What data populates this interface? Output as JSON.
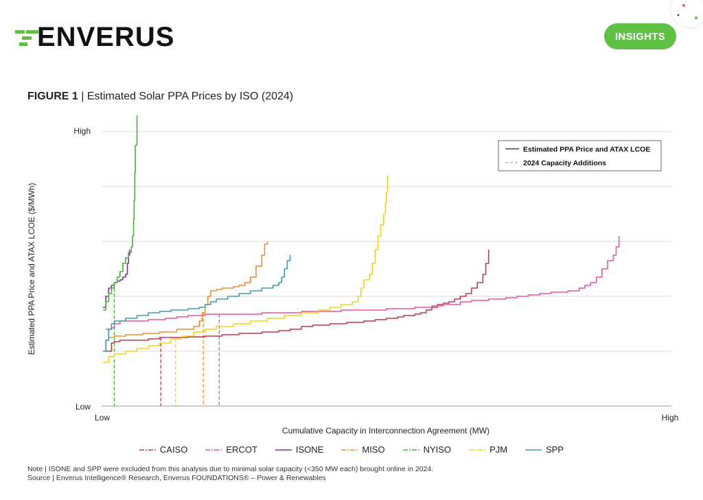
{
  "header": {
    "logo_text": "ENVERUS",
    "badge": "INSIGHTS",
    "brand_color": "#5ec143"
  },
  "figure": {
    "label": "FIGURE 1",
    "separator": " | ",
    "title": "Estimated Solar PPA Prices by ISO (2024)"
  },
  "chart_data": {
    "type": "line",
    "title": "Estimated Solar PPA Prices by ISO (2024)",
    "xlabel": "Cumulative Capacity in Interconnection Agreement (MW)",
    "ylabel": "Estimated PPA Price and ATAX LCOE ($/MWh)",
    "x_ticks": [
      "Low",
      "High"
    ],
    "y_ticks": [
      "Low",
      "High"
    ],
    "xlim": [
      0,
      100
    ],
    "ylim": [
      0,
      100
    ],
    "grid": true,
    "legend_inset": {
      "position": "top-right",
      "entries": [
        "Estimated PPA Price and ATAX LCOE",
        "2024 Capacity Additions"
      ]
    },
    "series": [
      {
        "name": "CAISO",
        "color": "#c0384f",
        "points": [
          [
            0.5,
            20
          ],
          [
            1.5,
            23
          ],
          [
            2,
            23.5
          ],
          [
            3,
            24
          ],
          [
            5,
            24
          ],
          [
            7,
            24
          ],
          [
            8,
            24.5
          ],
          [
            9,
            24.5
          ],
          [
            10,
            25
          ],
          [
            13,
            25
          ],
          [
            15,
            25.2
          ],
          [
            18,
            25.5
          ],
          [
            20,
            25.5
          ],
          [
            21,
            26
          ],
          [
            24,
            26.5
          ],
          [
            28,
            27
          ],
          [
            31,
            27.5
          ],
          [
            33,
            28
          ],
          [
            35,
            29
          ],
          [
            37,
            29.5
          ],
          [
            40,
            30
          ],
          [
            43,
            30.5
          ],
          [
            46,
            31
          ],
          [
            48,
            31.5
          ],
          [
            50,
            32
          ],
          [
            52,
            32.5
          ],
          [
            53,
            33
          ],
          [
            55,
            33.5
          ],
          [
            56,
            34
          ],
          [
            57,
            35
          ],
          [
            58,
            36
          ],
          [
            59,
            37
          ],
          [
            60,
            37.5
          ],
          [
            61,
            38
          ],
          [
            62,
            39
          ],
          [
            63,
            40
          ],
          [
            64,
            41
          ],
          [
            65,
            43
          ],
          [
            66,
            45
          ],
          [
            67,
            48
          ],
          [
            67.5,
            52
          ],
          [
            68,
            57
          ]
        ],
        "capacity_marker_x": 10.2
      },
      {
        "name": "ERCOT",
        "color": "#e8559a",
        "points": [
          [
            0.5,
            28
          ],
          [
            1.5,
            28.5
          ],
          [
            2,
            30
          ],
          [
            3,
            31
          ],
          [
            5,
            31
          ],
          [
            8,
            31.5
          ],
          [
            11,
            32
          ],
          [
            13,
            32.5
          ],
          [
            15,
            33
          ],
          [
            18,
            33.5
          ],
          [
            22,
            33.5
          ],
          [
            28,
            34
          ],
          [
            35,
            34.5
          ],
          [
            42,
            35
          ],
          [
            46,
            35
          ],
          [
            50,
            35.5
          ],
          [
            55,
            36
          ],
          [
            58,
            36.5
          ],
          [
            60,
            37
          ],
          [
            63,
            38
          ],
          [
            65,
            38.5
          ],
          [
            68,
            39
          ],
          [
            71,
            39.5
          ],
          [
            73,
            40
          ],
          [
            75,
            40.5
          ],
          [
            77,
            41
          ],
          [
            79,
            41.5
          ],
          [
            82,
            42
          ],
          [
            84,
            43
          ],
          [
            85,
            44
          ],
          [
            86,
            45
          ],
          [
            87,
            47
          ],
          [
            88,
            50
          ],
          [
            89,
            53
          ],
          [
            90,
            55
          ],
          [
            90.5,
            58
          ],
          [
            91,
            62
          ]
        ],
        "capacity_marker_x": 20.5
      },
      {
        "name": "ISONE",
        "color": "#7b3294",
        "points": [
          [
            0,
            36
          ],
          [
            0.5,
            40
          ],
          [
            1,
            43
          ],
          [
            1.5,
            44
          ],
          [
            2,
            45
          ],
          [
            2.5,
            45.5
          ],
          [
            3,
            46
          ],
          [
            3.5,
            47
          ],
          [
            4,
            48
          ],
          [
            4.3,
            52
          ],
          [
            4.5,
            55
          ],
          [
            4.7,
            57
          ]
        ],
        "capacity_marker_x": null
      },
      {
        "name": "MISO",
        "color": "#f28b30",
        "points": [
          [
            0.5,
            24
          ],
          [
            1,
            25
          ],
          [
            2,
            25.5
          ],
          [
            4,
            26
          ],
          [
            7,
            26.5
          ],
          [
            10,
            27
          ],
          [
            13,
            28
          ],
          [
            16,
            29
          ],
          [
            17,
            31
          ],
          [
            17.5,
            34
          ],
          [
            18,
            37
          ],
          [
            18.5,
            40
          ],
          [
            19,
            42
          ],
          [
            20,
            42.5
          ],
          [
            21,
            43
          ],
          [
            23,
            43.5
          ],
          [
            24,
            44
          ],
          [
            25,
            45
          ],
          [
            26,
            47
          ],
          [
            27,
            51
          ],
          [
            28,
            55
          ],
          [
            28.5,
            59
          ],
          [
            29,
            60
          ]
        ],
        "capacity_marker_x": 17.7
      },
      {
        "name": "NYISO",
        "color": "#4bb03b",
        "points": [
          [
            0,
            35
          ],
          [
            0.5,
            38
          ],
          [
            1,
            41
          ],
          [
            1.5,
            43
          ],
          [
            2,
            45
          ],
          [
            2.5,
            47
          ],
          [
            3,
            49
          ],
          [
            3.5,
            52
          ],
          [
            4,
            54
          ],
          [
            4.5,
            56
          ],
          [
            5,
            58
          ],
          [
            5.2,
            62
          ],
          [
            5.4,
            68
          ],
          [
            5.5,
            75
          ],
          [
            5.6,
            85
          ],
          [
            5.7,
            95
          ],
          [
            6,
            106
          ]
        ],
        "capacity_marker_x": 2.0
      },
      {
        "name": "PJM",
        "color": "#f2d31b",
        "points": [
          [
            0,
            16
          ],
          [
            1,
            18
          ],
          [
            2,
            19
          ],
          [
            4,
            20
          ],
          [
            6,
            21
          ],
          [
            8,
            22
          ],
          [
            10,
            23
          ],
          [
            12,
            24.5
          ],
          [
            14,
            25.5
          ],
          [
            16,
            27
          ],
          [
            18,
            28
          ],
          [
            20,
            29
          ],
          [
            23,
            30
          ],
          [
            26,
            31
          ],
          [
            29,
            32
          ],
          [
            32,
            33
          ],
          [
            35,
            34
          ],
          [
            38,
            35
          ],
          [
            40,
            36
          ],
          [
            42,
            37
          ],
          [
            44,
            38
          ],
          [
            45,
            40
          ],
          [
            45.5,
            43
          ],
          [
            46,
            46
          ],
          [
            47,
            48
          ],
          [
            47.5,
            52
          ],
          [
            48,
            57
          ],
          [
            48.5,
            62
          ],
          [
            49,
            66
          ],
          [
            49.5,
            70
          ],
          [
            49.8,
            74
          ],
          [
            50,
            78
          ],
          [
            50.2,
            84
          ]
        ],
        "capacity_marker_x": 12.8
      },
      {
        "name": "SPP",
        "color": "#3d9bb0",
        "points": [
          [
            0,
            20
          ],
          [
            0.5,
            24
          ],
          [
            1,
            28
          ],
          [
            1.5,
            30
          ],
          [
            2,
            31
          ],
          [
            4,
            32
          ],
          [
            6,
            33
          ],
          [
            8,
            34
          ],
          [
            10,
            34.5
          ],
          [
            12,
            35
          ],
          [
            15,
            35.5
          ],
          [
            17,
            36
          ],
          [
            18,
            37
          ],
          [
            19,
            38
          ],
          [
            20,
            39
          ],
          [
            22,
            40
          ],
          [
            24,
            41
          ],
          [
            26,
            42
          ],
          [
            28,
            43
          ],
          [
            30,
            44
          ],
          [
            31,
            45
          ],
          [
            31.5,
            47
          ],
          [
            32,
            50
          ],
          [
            32.5,
            53
          ],
          [
            33,
            55
          ]
        ],
        "capacity_marker_x": null
      }
    ],
    "note": "Note | ISONE and SPP were excluded from this analysis due to minimal solar capacity (<350 MW each) brought online in 2024.",
    "source": "Source | Enverus Intelligence® Research, Enverus FOUNDATIONS® – Power & Renewables"
  }
}
